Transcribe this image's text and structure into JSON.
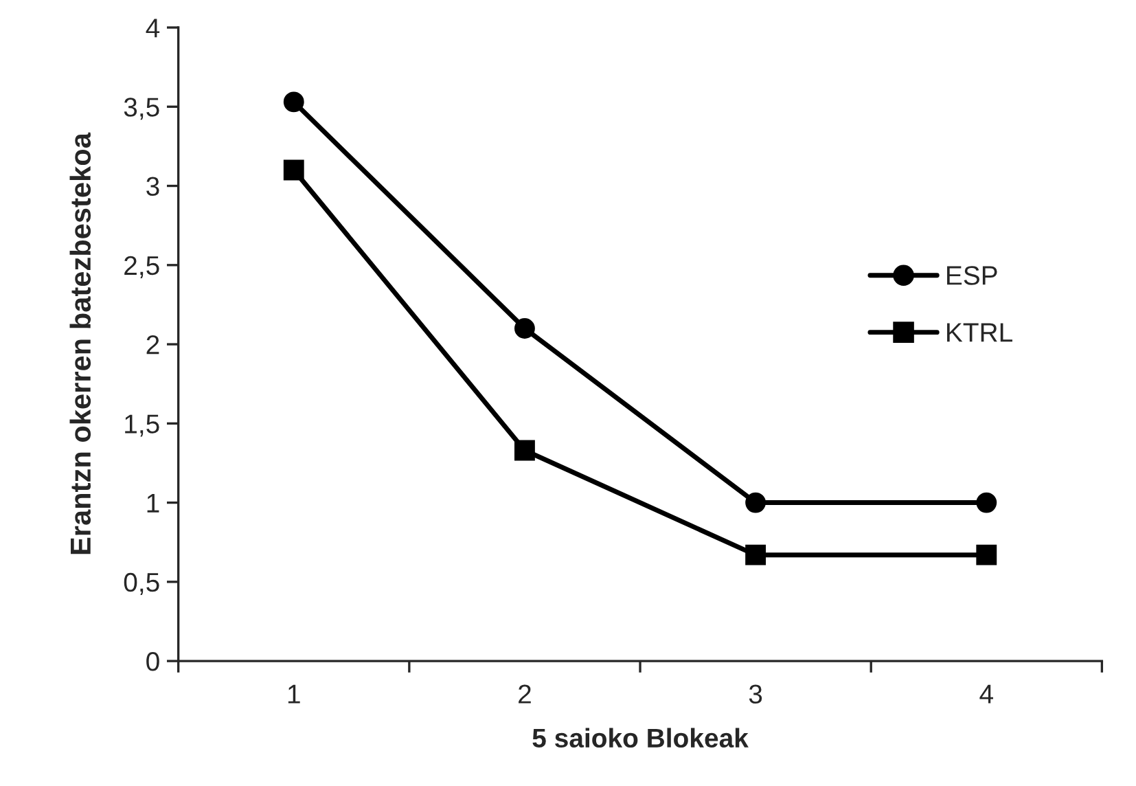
{
  "chart_data": {
    "type": "line",
    "xlabel": "5 saioko Blokeak",
    "ylabel": "Erantzn okerren batezbestekoa",
    "categories": [
      "1",
      "2",
      "3",
      "4"
    ],
    "series": [
      {
        "name": "ESP",
        "color": "#000000",
        "marker": "circle",
        "values": [
          3.53,
          2.1,
          1,
          1
        ]
      },
      {
        "name": "KTRL",
        "color": "#000000",
        "marker": "square",
        "values": [
          3.1,
          1.33,
          0.67,
          0.67
        ]
      }
    ],
    "ylim": [
      0,
      4
    ],
    "yticks": [
      0,
      {
        "value": 0.5,
        "label": "0,5"
      },
      1,
      {
        "value": 1.5,
        "label": "1,5"
      },
      2,
      {
        "value": 2.5,
        "label": "2,5"
      },
      3,
      {
        "value": 3.5,
        "label": "3,5"
      },
      4
    ],
    "grid": false,
    "legend": "right",
    "line_style": "solid"
  }
}
